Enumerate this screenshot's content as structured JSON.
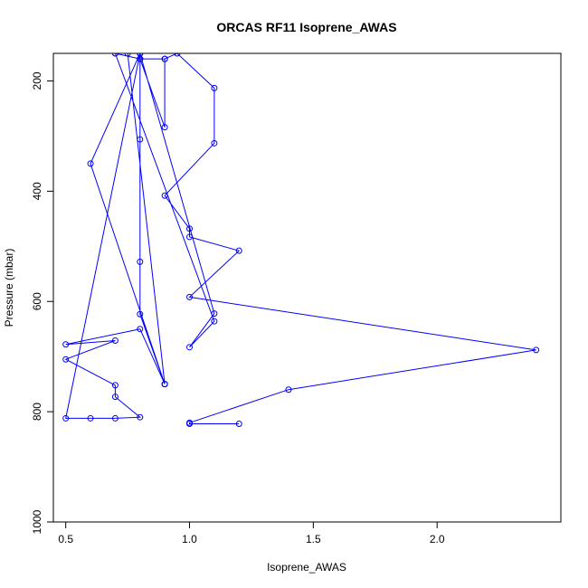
{
  "chart_data": {
    "type": "line",
    "title": "ORCAS RF11 Isoprene_AWAS",
    "xlabel": "Isoprene_AWAS",
    "ylabel": "Pressure (mbar)",
    "xlim": [
      0.45,
      2.5
    ],
    "ylim": [
      1000,
      150
    ],
    "y_reversed": true,
    "x_ticks": [
      0.5,
      1.0,
      1.5,
      2.0
    ],
    "x_tick_labels": [
      "0.5",
      "1.0",
      "1.5",
      "2.0"
    ],
    "y_ticks": [
      200,
      400,
      600,
      800,
      1000
    ],
    "y_tick_labels": [
      "200",
      "400",
      "600",
      "800",
      "1000"
    ],
    "colors": {
      "series": "#0000ff",
      "axis": "#000000"
    },
    "series": [
      {
        "x": [
          1.2,
          1.0,
          1.0,
          1.4,
          2.4,
          1.0,
          1.2,
          1.0,
          1.0,
          0.9,
          1.1,
          1.1,
          0.95,
          0.9,
          0.9,
          0.8,
          0.8,
          0.9,
          0.8,
          0.7,
          0.75,
          0.9,
          0.9,
          0.6,
          0.8,
          0.8,
          0.8,
          0.8,
          0.9,
          0.8,
          0.5,
          0.7,
          0.5,
          0.7,
          0.7,
          0.8,
          0.7,
          0.6,
          0.5,
          0.8,
          0.8,
          0.8,
          1.1,
          1.0,
          1.1,
          0.7
        ],
        "y": [
          822,
          822,
          820,
          760,
          688,
          592,
          508,
          483,
          468,
          408,
          313,
          213,
          150,
          160,
          284,
          160,
          160,
          160,
          160,
          150,
          150,
          750,
          750,
          350,
          150,
          306,
          528,
          623,
          750,
          650,
          678,
          671,
          705,
          752,
          773,
          810,
          812,
          812,
          812,
          150,
          150,
          150,
          622,
          683,
          636,
          150
        ]
      }
    ]
  }
}
